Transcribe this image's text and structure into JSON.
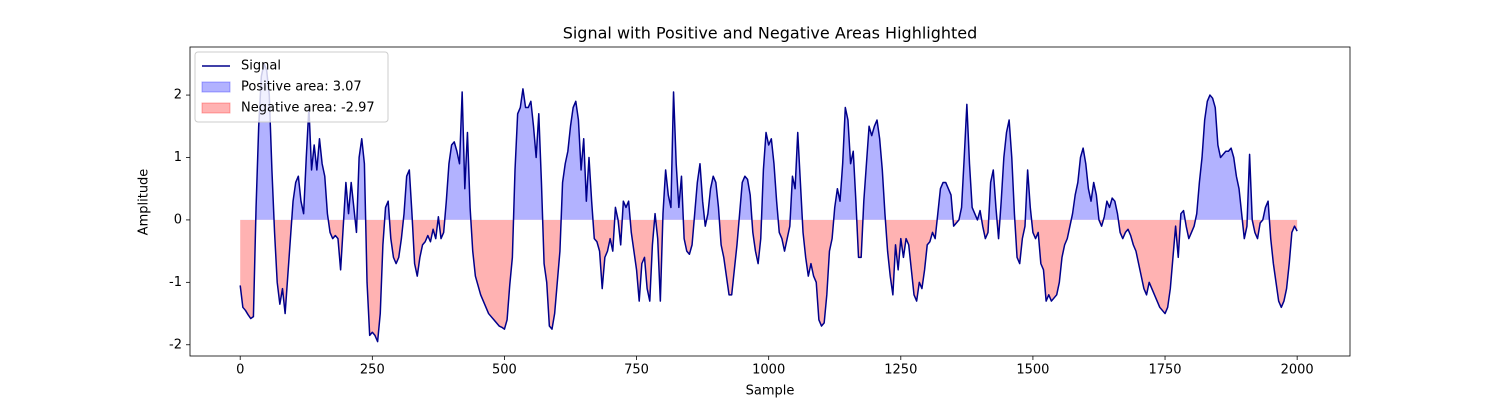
{
  "chart_data": {
    "type": "line",
    "title": "Signal with Positive and Negative Areas Highlighted",
    "x_label": "Sample",
    "y_label": "Amplitude",
    "x": [
      0,
      5,
      10,
      15,
      20,
      25,
      30,
      35,
      40,
      45,
      50,
      55,
      60,
      65,
      70,
      75,
      80,
      85,
      90,
      95,
      100,
      105,
      110,
      115,
      120,
      125,
      130,
      135,
      140,
      145,
      150,
      155,
      160,
      165,
      170,
      175,
      180,
      185,
      190,
      195,
      200,
      205,
      210,
      215,
      220,
      225,
      230,
      235,
      240,
      245,
      250,
      255,
      260,
      265,
      270,
      275,
      280,
      285,
      290,
      295,
      300,
      305,
      310,
      315,
      320,
      325,
      330,
      335,
      340,
      345,
      350,
      355,
      360,
      365,
      370,
      375,
      380,
      385,
      390,
      395,
      400,
      405,
      410,
      415,
      420,
      425,
      430,
      435,
      440,
      445,
      450,
      455,
      460,
      465,
      470,
      475,
      480,
      485,
      490,
      495,
      500,
      505,
      510,
      515,
      520,
      525,
      530,
      535,
      540,
      545,
      550,
      555,
      560,
      565,
      570,
      575,
      580,
      585,
      590,
      595,
      600,
      605,
      610,
      615,
      620,
      625,
      630,
      635,
      640,
      645,
      650,
      655,
      660,
      665,
      670,
      675,
      680,
      685,
      690,
      695,
      700,
      705,
      710,
      715,
      720,
      725,
      730,
      735,
      740,
      745,
      750,
      755,
      760,
      765,
      770,
      775,
      780,
      785,
      790,
      795,
      800,
      805,
      810,
      815,
      820,
      825,
      830,
      835,
      840,
      845,
      850,
      855,
      860,
      865,
      870,
      875,
      880,
      885,
      890,
      895,
      900,
      905,
      910,
      915,
      920,
      925,
      930,
      935,
      940,
      945,
      950,
      955,
      960,
      965,
      970,
      975,
      980,
      985,
      990,
      995,
      1000,
      1005,
      1010,
      1015,
      1020,
      1025,
      1030,
      1035,
      1040,
      1045,
      1050,
      1055,
      1060,
      1065,
      1070,
      1075,
      1080,
      1085,
      1090,
      1095,
      1100,
      1105,
      1110,
      1115,
      1120,
      1125,
      1130,
      1135,
      1140,
      1145,
      1150,
      1155,
      1160,
      1165,
      1170,
      1175,
      1180,
      1185,
      1190,
      1195,
      1200,
      1205,
      1210,
      1215,
      1220,
      1225,
      1230,
      1235,
      1240,
      1245,
      1250,
      1255,
      1260,
      1265,
      1270,
      1275,
      1280,
      1285,
      1290,
      1295,
      1300,
      1305,
      1310,
      1315,
      1320,
      1325,
      1330,
      1335,
      1340,
      1345,
      1350,
      1355,
      1360,
      1365,
      1370,
      1375,
      1380,
      1385,
      1390,
      1395,
      1400,
      1405,
      1410,
      1415,
      1420,
      1425,
      1430,
      1435,
      1440,
      1445,
      1450,
      1455,
      1460,
      1465,
      1470,
      1475,
      1480,
      1485,
      1490,
      1495,
      1500,
      1505,
      1510,
      1515,
      1520,
      1525,
      1530,
      1535,
      1540,
      1545,
      1550,
      1555,
      1560,
      1565,
      1570,
      1575,
      1580,
      1585,
      1590,
      1595,
      1600,
      1605,
      1610,
      1615,
      1620,
      1625,
      1630,
      1635,
      1640,
      1645,
      1650,
      1655,
      1660,
      1665,
      1670,
      1675,
      1680,
      1685,
      1690,
      1695,
      1700,
      1705,
      1710,
      1715,
      1720,
      1725,
      1730,
      1735,
      1740,
      1745,
      1750,
      1755,
      1760,
      1765,
      1770,
      1775,
      1780,
      1785,
      1790,
      1795,
      1800,
      1805,
      1810,
      1815,
      1820,
      1825,
      1830,
      1835,
      1840,
      1845,
      1850,
      1855,
      1860,
      1865,
      1870,
      1875,
      1880,
      1885,
      1890,
      1895,
      1900,
      1905,
      1910,
      1915,
      1920,
      1925,
      1930,
      1935,
      1940,
      1945,
      1950,
      1955,
      1960,
      1965,
      1970,
      1975,
      1980,
      1985,
      1990,
      1995,
      2000
    ],
    "series": [
      {
        "name": "Signal",
        "color": "#00008b",
        "values": [
          -1.05,
          -1.4,
          -1.45,
          -1.52,
          -1.58,
          -1.55,
          0.2,
          1.5,
          2.3,
          2.5,
          2.4,
          2.0,
          0.8,
          -0.2,
          -1.0,
          -1.35,
          -1.1,
          -1.5,
          -0.9,
          -0.3,
          0.3,
          0.6,
          0.7,
          0.3,
          0.1,
          1.0,
          1.8,
          0.8,
          1.2,
          0.8,
          1.3,
          0.9,
          0.7,
          0.1,
          -0.2,
          -0.3,
          -0.25,
          -0.3,
          -0.8,
          -0.1,
          0.6,
          0.1,
          0.6,
          0.2,
          -0.2,
          1.0,
          1.3,
          0.9,
          -1.0,
          -1.85,
          -1.8,
          -1.85,
          -1.95,
          -1.5,
          -0.4,
          0.2,
          0.3,
          -0.3,
          -0.6,
          -0.7,
          -0.6,
          -0.3,
          0.1,
          0.7,
          0.8,
          0.1,
          -0.7,
          -0.9,
          -0.6,
          -0.4,
          -0.35,
          -0.25,
          -0.35,
          -0.15,
          -0.3,
          0.05,
          -0.3,
          -0.2,
          0.3,
          0.9,
          1.2,
          1.25,
          1.1,
          0.9,
          2.05,
          0.5,
          1.4,
          0.2,
          -0.5,
          -0.9,
          -1.05,
          -1.2,
          -1.3,
          -1.4,
          -1.5,
          -1.55,
          -1.6,
          -1.65,
          -1.7,
          -1.72,
          -1.75,
          -1.6,
          -1.05,
          -0.6,
          0.8,
          1.7,
          1.8,
          2.1,
          1.8,
          1.8,
          1.9,
          1.5,
          1.0,
          1.7,
          0.6,
          -0.7,
          -1.0,
          -1.7,
          -1.75,
          -1.5,
          -1.0,
          -0.5,
          0.6,
          0.9,
          1.1,
          1.5,
          1.8,
          1.9,
          1.6,
          0.8,
          1.3,
          0.3,
          1.0,
          0.3,
          -0.3,
          -0.35,
          -0.5,
          -1.1,
          -0.6,
          -0.5,
          -0.3,
          -0.5,
          0.2,
          0.0,
          -0.4,
          0.3,
          0.2,
          0.3,
          -0.2,
          -0.5,
          -0.8,
          -1.3,
          -0.7,
          -0.6,
          -1.1,
          -1.3,
          -0.4,
          0.1,
          -0.3,
          -1.3,
          0.1,
          0.8,
          0.4,
          0.2,
          2.05,
          0.9,
          0.2,
          0.7,
          -0.3,
          -0.5,
          -0.55,
          -0.4,
          0.1,
          0.6,
          0.9,
          0.3,
          -0.1,
          0.1,
          0.5,
          0.7,
          0.6,
          0.2,
          -0.4,
          -0.6,
          -0.9,
          -1.2,
          -1.2,
          -0.8,
          -0.4,
          0.1,
          0.6,
          0.7,
          0.65,
          0.4,
          -0.2,
          -0.5,
          -0.7,
          -0.3,
          0.8,
          1.4,
          1.2,
          1.3,
          0.9,
          0.3,
          -0.2,
          -0.3,
          -0.5,
          -0.3,
          -0.1,
          0.7,
          0.5,
          1.4,
          0.6,
          -0.2,
          -0.6,
          -0.9,
          -0.7,
          -0.9,
          -1.0,
          -1.6,
          -1.7,
          -1.65,
          -1.2,
          -0.5,
          -0.3,
          0.2,
          0.5,
          0.3,
          0.9,
          1.8,
          1.6,
          0.9,
          1.1,
          0.3,
          -0.6,
          -0.6,
          0.3,
          0.9,
          1.5,
          1.35,
          1.5,
          1.6,
          1.3,
          0.8,
          0.1,
          -0.5,
          -0.9,
          -1.2,
          -0.4,
          -0.8,
          -0.3,
          -0.6,
          -0.3,
          -0.4,
          -0.8,
          -1.2,
          -1.3,
          -1.0,
          -1.1,
          -0.8,
          -0.4,
          -0.35,
          -0.2,
          -0.3,
          0.1,
          0.5,
          0.6,
          0.6,
          0.5,
          0.4,
          -0.1,
          -0.05,
          0.0,
          0.2,
          1.0,
          1.85,
          0.9,
          0.2,
          0.1,
          0.0,
          0.15,
          -0.1,
          -0.3,
          -0.2,
          0.6,
          0.8,
          0.2,
          -0.3,
          0.3,
          1.0,
          1.4,
          1.6,
          1.0,
          0.1,
          -0.6,
          -0.7,
          -0.3,
          -0.1,
          0.8,
          0.2,
          -0.2,
          -0.3,
          -0.2,
          -0.7,
          -0.8,
          -1.3,
          -1.2,
          -1.3,
          -1.25,
          -1.2,
          -1.0,
          -0.6,
          -0.4,
          -0.3,
          -0.1,
          0.1,
          0.4,
          0.6,
          1.0,
          1.15,
          0.9,
          0.5,
          0.3,
          0.6,
          0.4,
          0.0,
          -0.1,
          0.05,
          0.3,
          0.2,
          0.35,
          0.3,
          0.1,
          -0.2,
          -0.3,
          -0.2,
          -0.15,
          -0.25,
          -0.4,
          -0.5,
          -0.7,
          -0.9,
          -1.1,
          -1.2,
          -1.0,
          -1.1,
          -1.2,
          -1.3,
          -1.4,
          -1.45,
          -1.5,
          -1.4,
          -1.1,
          -0.6,
          -0.1,
          -0.6,
          0.1,
          0.15,
          -0.1,
          -0.3,
          -0.2,
          -0.1,
          0.1,
          0.6,
          1.0,
          1.6,
          1.9,
          2.0,
          1.95,
          1.8,
          1.2,
          1.0,
          1.05,
          1.1,
          1.1,
          1.15,
          1.0,
          0.7,
          0.5,
          0.1,
          -0.3,
          -0.1,
          1.05,
          0.0,
          -0.2,
          -0.3,
          -0.05,
          0.0,
          0.2,
          0.3,
          -0.3,
          -0.7,
          -1.0,
          -1.3,
          -1.4,
          -1.3,
          -1.1,
          -0.7,
          -0.2,
          -0.1,
          -0.18
        ]
      }
    ],
    "fills": [
      {
        "name": "Positive area: 3.07",
        "color": "#0000ff",
        "side": "above"
      },
      {
        "name": "Negative area: -2.97",
        "color": "#ff0000",
        "side": "below"
      }
    ],
    "fill_baseline": 0,
    "xlim": [
      -95,
      2100
    ],
    "ylim": [
      -2.18,
      2.77
    ],
    "xticks": [
      0,
      250,
      500,
      750,
      1000,
      1250,
      1500,
      1750,
      2000
    ],
    "yticks": [
      -2,
      -1,
      0,
      1,
      2
    ],
    "grid": false,
    "legend": "upper left"
  }
}
